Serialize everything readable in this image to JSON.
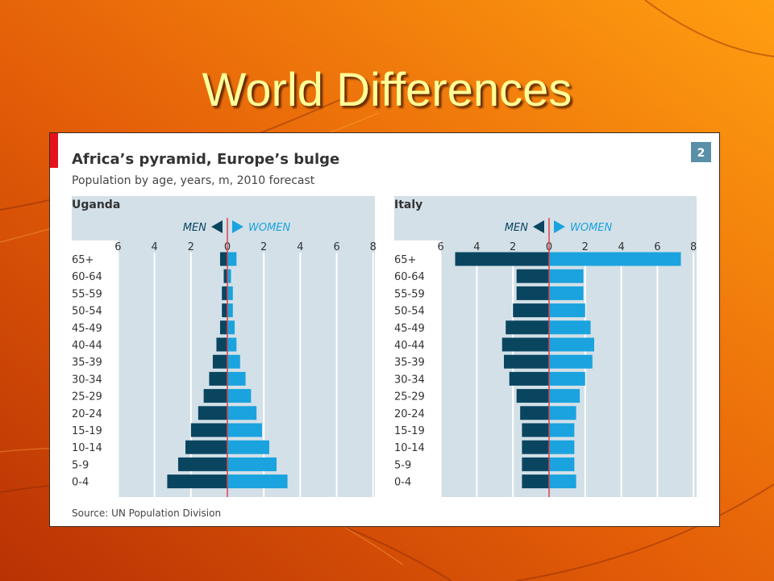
{
  "slide": {
    "title": "World Differences",
    "colors": {
      "background_dark": "#c23c05",
      "background_light": "#ff9a0e",
      "title": "#ffff99"
    }
  },
  "figure": {
    "title": "Africa’s pyramid, Europe’s bulge",
    "subtitle": "Population by age, years, m, 2010 forecast",
    "badge": "2",
    "source": "Source: UN Population Division",
    "colors": {
      "men": "#0a4560",
      "women": "#1aa3de",
      "panel": "#d3e0e8",
      "accent": "#e3121b",
      "center_line": "#d9434a"
    }
  },
  "chart_data": [
    {
      "type": "bar",
      "orientation": "horizontal-pyramid",
      "title": "Uganda",
      "legend": {
        "men": "MEN",
        "women": "WOMEN"
      },
      "xlim": [
        -6,
        8
      ],
      "ticks": [
        "6",
        "4",
        "2",
        "0",
        "2",
        "4",
        "6",
        "8"
      ],
      "categories": [
        "65+",
        "60-64",
        "55-59",
        "50-54",
        "45-49",
        "40-44",
        "35-39",
        "30-34",
        "25-29",
        "20-24",
        "15-19",
        "10-14",
        "5-9",
        "0-4"
      ],
      "series": [
        {
          "name": "MEN",
          "values": [
            0.4,
            0.2,
            0.3,
            0.3,
            0.4,
            0.6,
            0.8,
            1.0,
            1.3,
            1.6,
            2.0,
            2.3,
            2.7,
            3.3
          ]
        },
        {
          "name": "WOMEN",
          "values": [
            0.5,
            0.2,
            0.3,
            0.3,
            0.4,
            0.5,
            0.7,
            1.0,
            1.3,
            1.6,
            1.9,
            2.3,
            2.7,
            3.3
          ]
        }
      ]
    },
    {
      "type": "bar",
      "orientation": "horizontal-pyramid",
      "title": "Italy",
      "legend": {
        "men": "MEN",
        "women": "WOMEN"
      },
      "xlim": [
        -6,
        8
      ],
      "ticks": [
        "6",
        "4",
        "2",
        "0",
        "2",
        "4",
        "6",
        "8"
      ],
      "categories": [
        "65+",
        "60-64",
        "55-59",
        "50-54",
        "45-49",
        "40-44",
        "35-39",
        "30-34",
        "25-29",
        "20-24",
        "15-19",
        "10-14",
        "5-9",
        "0-4"
      ],
      "series": [
        {
          "name": "MEN",
          "values": [
            5.2,
            1.8,
            1.8,
            2.0,
            2.4,
            2.6,
            2.5,
            2.2,
            1.8,
            1.6,
            1.5,
            1.5,
            1.5,
            1.5
          ]
        },
        {
          "name": "WOMEN",
          "values": [
            7.3,
            1.9,
            1.9,
            2.0,
            2.3,
            2.5,
            2.4,
            2.0,
            1.7,
            1.5,
            1.4,
            1.4,
            1.4,
            1.5
          ]
        }
      ]
    }
  ]
}
